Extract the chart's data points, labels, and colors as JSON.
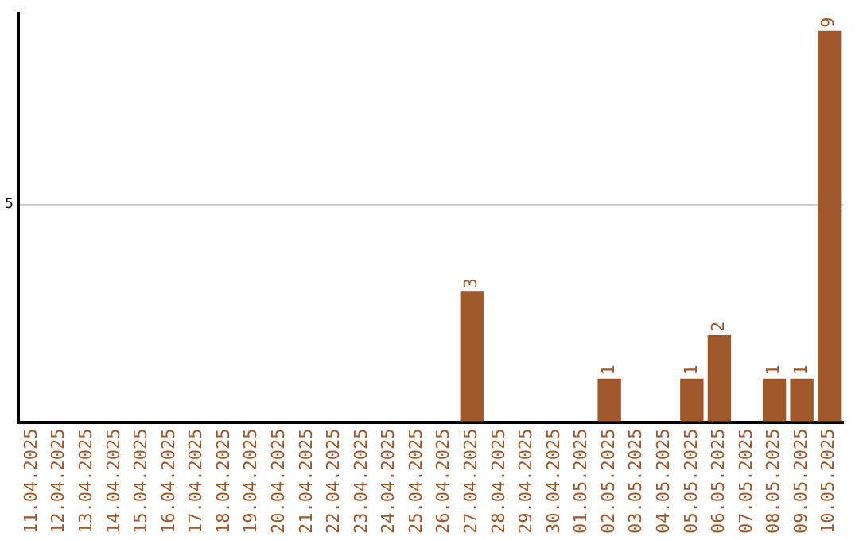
{
  "chart_data": {
    "type": "bar",
    "categories": [
      "11.04.2025",
      "12.04.2025",
      "13.04.2025",
      "14.04.2025",
      "15.04.2025",
      "16.04.2025",
      "17.04.2025",
      "18.04.2025",
      "19.04.2025",
      "20.04.2025",
      "21.04.2025",
      "22.04.2025",
      "23.04.2025",
      "24.04.2025",
      "25.04.2025",
      "26.04.2025",
      "27.04.2025",
      "28.04.2025",
      "29.04.2025",
      "30.04.2025",
      "01.05.2025",
      "02.05.2025",
      "03.05.2025",
      "04.05.2025",
      "05.05.2025",
      "06.05.2025",
      "07.05.2025",
      "08.05.2025",
      "09.05.2025",
      "10.05.2025"
    ],
    "values": [
      null,
      null,
      null,
      null,
      null,
      null,
      null,
      null,
      null,
      null,
      null,
      null,
      null,
      null,
      null,
      null,
      3,
      null,
      null,
      null,
      null,
      1,
      null,
      null,
      1,
      2,
      null,
      1,
      1,
      9
    ],
    "data_labels": true,
    "color": "#a0572a",
    "ylim": [
      0,
      9.4
    ],
    "yticks": [
      {
        "value": 0,
        "label": null
      },
      5
    ],
    "grid": "y",
    "legend": false
  }
}
